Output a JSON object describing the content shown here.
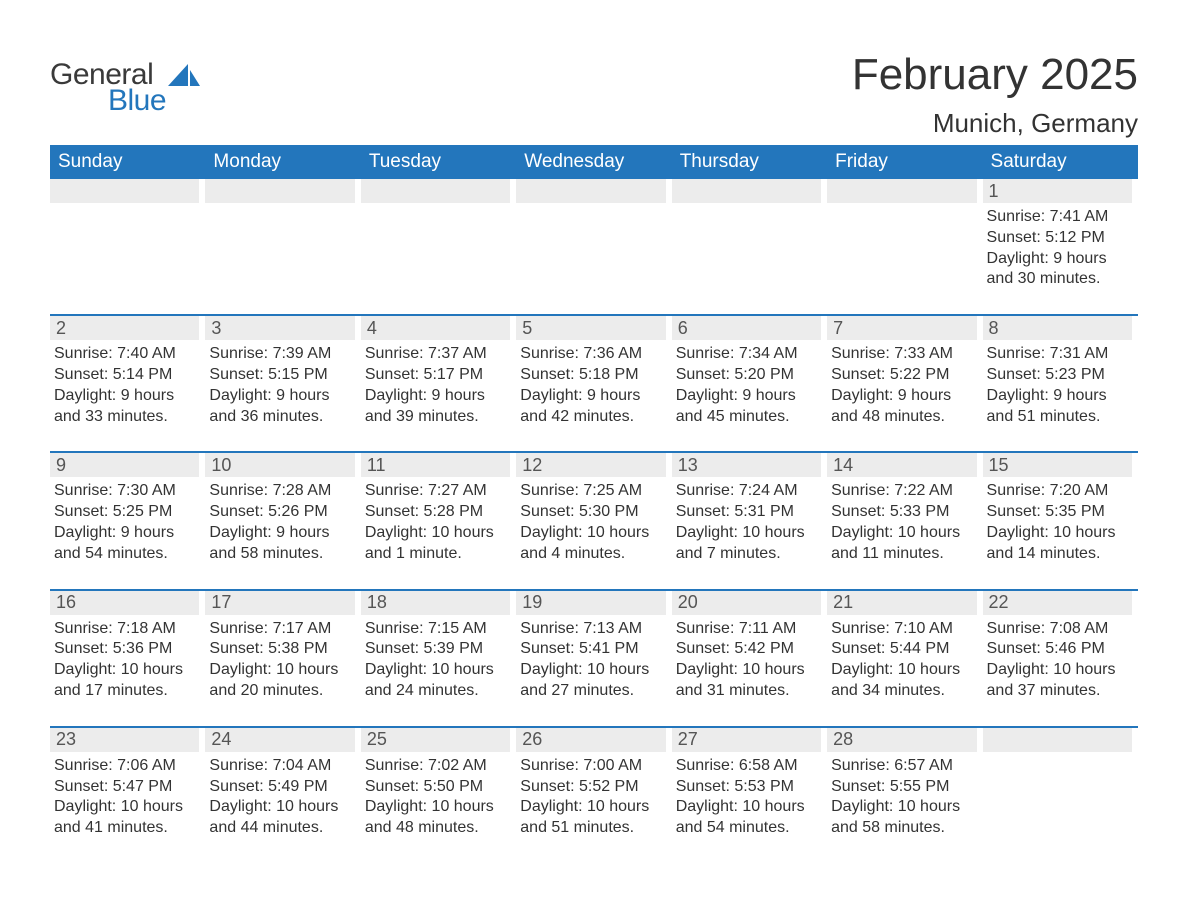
{
  "brand": {
    "general": "General",
    "blue": "Blue",
    "sail_color": "#2376bc"
  },
  "header": {
    "title": "February 2025",
    "location": "Munich, Germany"
  },
  "colors": {
    "header_bg": "#2376bc",
    "header_text": "#ffffff",
    "band_bg": "#ececec",
    "row_border": "#2376bc",
    "text": "#333333",
    "page_bg": "#ffffff"
  },
  "fonts": {
    "title_size_pt": 33,
    "location_size_pt": 20,
    "weekday_size_pt": 14,
    "daynum_size_pt": 14,
    "body_size_pt": 12
  },
  "weekdays": [
    "Sunday",
    "Monday",
    "Tuesday",
    "Wednesday",
    "Thursday",
    "Friday",
    "Saturday"
  ],
  "weeks": [
    [
      {
        "day": "",
        "sunrise": "",
        "sunset": "",
        "daylight": ""
      },
      {
        "day": "",
        "sunrise": "",
        "sunset": "",
        "daylight": ""
      },
      {
        "day": "",
        "sunrise": "",
        "sunset": "",
        "daylight": ""
      },
      {
        "day": "",
        "sunrise": "",
        "sunset": "",
        "daylight": ""
      },
      {
        "day": "",
        "sunrise": "",
        "sunset": "",
        "daylight": ""
      },
      {
        "day": "",
        "sunrise": "",
        "sunset": "",
        "daylight": ""
      },
      {
        "day": "1",
        "sunrise": "Sunrise: 7:41 AM",
        "sunset": "Sunset: 5:12 PM",
        "daylight": "Daylight: 9 hours and 30 minutes."
      }
    ],
    [
      {
        "day": "2",
        "sunrise": "Sunrise: 7:40 AM",
        "sunset": "Sunset: 5:14 PM",
        "daylight": "Daylight: 9 hours and 33 minutes."
      },
      {
        "day": "3",
        "sunrise": "Sunrise: 7:39 AM",
        "sunset": "Sunset: 5:15 PM",
        "daylight": "Daylight: 9 hours and 36 minutes."
      },
      {
        "day": "4",
        "sunrise": "Sunrise: 7:37 AM",
        "sunset": "Sunset: 5:17 PM",
        "daylight": "Daylight: 9 hours and 39 minutes."
      },
      {
        "day": "5",
        "sunrise": "Sunrise: 7:36 AM",
        "sunset": "Sunset: 5:18 PM",
        "daylight": "Daylight: 9 hours and 42 minutes."
      },
      {
        "day": "6",
        "sunrise": "Sunrise: 7:34 AM",
        "sunset": "Sunset: 5:20 PM",
        "daylight": "Daylight: 9 hours and 45 minutes."
      },
      {
        "day": "7",
        "sunrise": "Sunrise: 7:33 AM",
        "sunset": "Sunset: 5:22 PM",
        "daylight": "Daylight: 9 hours and 48 minutes."
      },
      {
        "day": "8",
        "sunrise": "Sunrise: 7:31 AM",
        "sunset": "Sunset: 5:23 PM",
        "daylight": "Daylight: 9 hours and 51 minutes."
      }
    ],
    [
      {
        "day": "9",
        "sunrise": "Sunrise: 7:30 AM",
        "sunset": "Sunset: 5:25 PM",
        "daylight": "Daylight: 9 hours and 54 minutes."
      },
      {
        "day": "10",
        "sunrise": "Sunrise: 7:28 AM",
        "sunset": "Sunset: 5:26 PM",
        "daylight": "Daylight: 9 hours and 58 minutes."
      },
      {
        "day": "11",
        "sunrise": "Sunrise: 7:27 AM",
        "sunset": "Sunset: 5:28 PM",
        "daylight": "Daylight: 10 hours and 1 minute."
      },
      {
        "day": "12",
        "sunrise": "Sunrise: 7:25 AM",
        "sunset": "Sunset: 5:30 PM",
        "daylight": "Daylight: 10 hours and 4 minutes."
      },
      {
        "day": "13",
        "sunrise": "Sunrise: 7:24 AM",
        "sunset": "Sunset: 5:31 PM",
        "daylight": "Daylight: 10 hours and 7 minutes."
      },
      {
        "day": "14",
        "sunrise": "Sunrise: 7:22 AM",
        "sunset": "Sunset: 5:33 PM",
        "daylight": "Daylight: 10 hours and 11 minutes."
      },
      {
        "day": "15",
        "sunrise": "Sunrise: 7:20 AM",
        "sunset": "Sunset: 5:35 PM",
        "daylight": "Daylight: 10 hours and 14 minutes."
      }
    ],
    [
      {
        "day": "16",
        "sunrise": "Sunrise: 7:18 AM",
        "sunset": "Sunset: 5:36 PM",
        "daylight": "Daylight: 10 hours and 17 minutes."
      },
      {
        "day": "17",
        "sunrise": "Sunrise: 7:17 AM",
        "sunset": "Sunset: 5:38 PM",
        "daylight": "Daylight: 10 hours and 20 minutes."
      },
      {
        "day": "18",
        "sunrise": "Sunrise: 7:15 AM",
        "sunset": "Sunset: 5:39 PM",
        "daylight": "Daylight: 10 hours and 24 minutes."
      },
      {
        "day": "19",
        "sunrise": "Sunrise: 7:13 AM",
        "sunset": "Sunset: 5:41 PM",
        "daylight": "Daylight: 10 hours and 27 minutes."
      },
      {
        "day": "20",
        "sunrise": "Sunrise: 7:11 AM",
        "sunset": "Sunset: 5:42 PM",
        "daylight": "Daylight: 10 hours and 31 minutes."
      },
      {
        "day": "21",
        "sunrise": "Sunrise: 7:10 AM",
        "sunset": "Sunset: 5:44 PM",
        "daylight": "Daylight: 10 hours and 34 minutes."
      },
      {
        "day": "22",
        "sunrise": "Sunrise: 7:08 AM",
        "sunset": "Sunset: 5:46 PM",
        "daylight": "Daylight: 10 hours and 37 minutes."
      }
    ],
    [
      {
        "day": "23",
        "sunrise": "Sunrise: 7:06 AM",
        "sunset": "Sunset: 5:47 PM",
        "daylight": "Daylight: 10 hours and 41 minutes."
      },
      {
        "day": "24",
        "sunrise": "Sunrise: 7:04 AM",
        "sunset": "Sunset: 5:49 PM",
        "daylight": "Daylight: 10 hours and 44 minutes."
      },
      {
        "day": "25",
        "sunrise": "Sunrise: 7:02 AM",
        "sunset": "Sunset: 5:50 PM",
        "daylight": "Daylight: 10 hours and 48 minutes."
      },
      {
        "day": "26",
        "sunrise": "Sunrise: 7:00 AM",
        "sunset": "Sunset: 5:52 PM",
        "daylight": "Daylight: 10 hours and 51 minutes."
      },
      {
        "day": "27",
        "sunrise": "Sunrise: 6:58 AM",
        "sunset": "Sunset: 5:53 PM",
        "daylight": "Daylight: 10 hours and 54 minutes."
      },
      {
        "day": "28",
        "sunrise": "Sunrise: 6:57 AM",
        "sunset": "Sunset: 5:55 PM",
        "daylight": "Daylight: 10 hours and 58 minutes."
      },
      {
        "day": "",
        "sunrise": "",
        "sunset": "",
        "daylight": ""
      }
    ]
  ]
}
